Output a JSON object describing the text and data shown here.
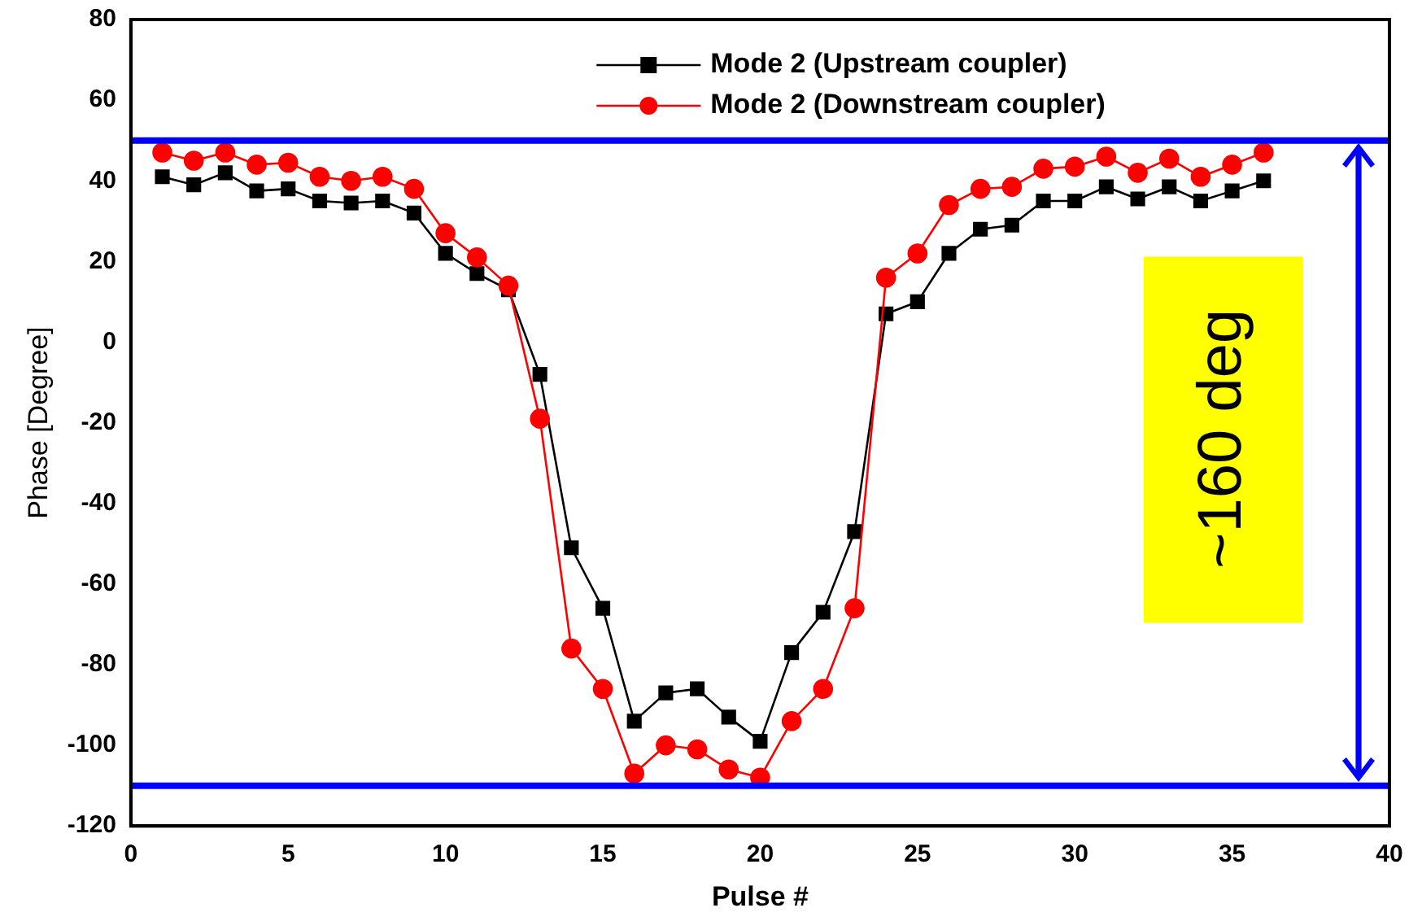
{
  "chart_data": {
    "type": "line",
    "xlabel": "Pulse #",
    "ylabel": "Phase [Degree]",
    "x": [
      1,
      2,
      3,
      4,
      5,
      6,
      7,
      8,
      9,
      10,
      11,
      12,
      13,
      14,
      15,
      16,
      17,
      18,
      19,
      20,
      21,
      22,
      23,
      24,
      25,
      26,
      27,
      28,
      29,
      30,
      31,
      32,
      33,
      34,
      35,
      36
    ],
    "series": [
      {
        "name": "Mode 2 (Upstream coupler)",
        "color": "#000000",
        "marker": "square",
        "values": [
          41,
          39,
          42,
          37.5,
          38,
          35,
          34.5,
          35,
          32,
          22,
          17,
          13,
          -8,
          -51,
          -66,
          -94,
          -87,
          -86,
          -93,
          -99,
          -77,
          -67,
          -47,
          7,
          10,
          22,
          28,
          29,
          35,
          35,
          38.5,
          35.5,
          38.5,
          35,
          37.5,
          40
        ]
      },
      {
        "name": "Mode 2 (Downstream coupler)",
        "color": "#ff0000",
        "marker": "circle",
        "values": [
          47,
          45,
          47,
          44,
          44.5,
          41,
          40,
          41,
          38,
          27,
          21,
          14,
          -19,
          -76,
          -86,
          -107,
          -100,
          -101,
          -106,
          -108,
          -94,
          -86,
          -66,
          16,
          22,
          34,
          38,
          38.5,
          43,
          43.5,
          46,
          42,
          45.5,
          41,
          44,
          47
        ]
      }
    ],
    "xlim": [
      0,
      40
    ],
    "xticks": [
      0,
      5,
      10,
      15,
      20,
      25,
      30,
      35,
      40
    ],
    "ylim": [
      -120,
      80
    ],
    "yticks": [
      -120,
      -100,
      -80,
      -60,
      -40,
      -20,
      0,
      20,
      40,
      60,
      80
    ],
    "ref_lines": [
      {
        "axis": "y",
        "value": 50,
        "color": "#0000ff"
      },
      {
        "axis": "y",
        "value": -110,
        "color": "#0000ff"
      }
    ],
    "annotations": [
      "~160 deg"
    ],
    "grid": false,
    "legend": "top right",
    "line_style": "solid"
  }
}
